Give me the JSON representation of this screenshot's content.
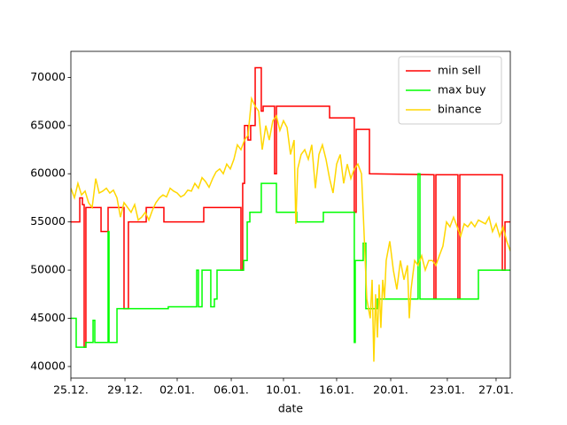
{
  "chart_data": {
    "type": "line",
    "x_label": "date",
    "xlim": [
      0,
      33.07
    ],
    "ylim": [
      38800,
      72700
    ],
    "xticks": [
      {
        "value": 0,
        "label": "25.12."
      },
      {
        "value": 4.07,
        "label": "29.12."
      },
      {
        "value": 8,
        "label": "02.01."
      },
      {
        "value": 12.07,
        "label": "06.01."
      },
      {
        "value": 16,
        "label": "10.01."
      },
      {
        "value": 20,
        "label": "16.01."
      },
      {
        "value": 24.07,
        "label": "20.01."
      },
      {
        "value": 28.33,
        "label": "23.01."
      },
      {
        "value": 32,
        "label": "27.01."
      }
    ],
    "yticks": [
      40000,
      45000,
      50000,
      55000,
      60000,
      65000,
      70000
    ],
    "legend": "upper right",
    "series": [
      {
        "name": "min sell",
        "color": "#ff0000",
        "x": [
          0,
          0.67,
          0.67,
          0.87,
          0.87,
          1,
          1,
          1.13,
          1.13,
          2.27,
          2.27,
          2.8,
          2.8,
          4,
          4,
          4.33,
          4.33,
          5.67,
          5.67,
          7,
          7,
          10,
          10,
          12.8,
          12.8,
          12.93,
          12.93,
          13.07,
          13.07,
          13.33,
          13.33,
          13.53,
          13.53,
          13.87,
          13.87,
          14.33,
          14.33,
          14.47,
          14.47,
          15.33,
          15.33,
          15.47,
          15.47,
          19.47,
          19.47,
          21.33,
          21.33,
          21.47,
          21.47,
          22.47,
          22.47,
          27.33,
          27.33,
          27.47,
          27.47,
          29.13,
          29.13,
          29.27,
          29.27,
          32.47,
          32.47,
          32.67,
          32.67,
          33.07
        ],
        "values": [
          55000,
          55000,
          57500,
          57500,
          56800,
          56800,
          42000,
          42000,
          56500,
          56500,
          54000,
          54000,
          56500,
          56500,
          46000,
          46000,
          55000,
          55000,
          56500,
          56500,
          55000,
          55000,
          56500,
          56500,
          50000,
          50000,
          59000,
          59000,
          65000,
          65000,
          63500,
          63500,
          65000,
          65000,
          71000,
          71000,
          66500,
          66500,
          67000,
          67000,
          60000,
          60000,
          67000,
          67000,
          65800,
          65800,
          56000,
          56000,
          64600,
          64600,
          60000,
          59900,
          47000,
          47000,
          59900,
          59900,
          47000,
          47000,
          59900,
          59900,
          50000,
          50000,
          55000,
          55000
        ]
      },
      {
        "name": "max buy",
        "color": "#00ff00",
        "x": [
          0,
          0.4,
          0.4,
          1.13,
          1.13,
          1.67,
          1.67,
          1.8,
          1.8,
          2.8,
          2.8,
          2.87,
          2.87,
          3.47,
          3.47,
          7.33,
          7.33,
          9.47,
          9.47,
          9.6,
          9.6,
          9.87,
          9.87,
          10.53,
          10.53,
          10.8,
          10.8,
          11,
          11,
          13,
          13,
          13.27,
          13.27,
          13.47,
          13.47,
          14.33,
          14.33,
          15.47,
          15.47,
          17,
          17,
          19,
          19,
          21.33,
          21.33,
          21.4,
          21.4,
          22,
          22,
          22.2,
          22.2,
          23.07,
          23.07,
          26.13,
          26.13,
          26.27,
          26.27,
          30.67,
          30.67,
          33.07
        ],
        "values": [
          45000,
          45000,
          42000,
          42000,
          42500,
          42500,
          44800,
          44800,
          42500,
          42500,
          54000,
          54000,
          42500,
          42500,
          46000,
          46000,
          46200,
          46200,
          50000,
          50000,
          46200,
          46200,
          50000,
          50000,
          46200,
          46200,
          47000,
          47000,
          50000,
          50000,
          51000,
          51000,
          55000,
          55000,
          56000,
          56000,
          59000,
          59000,
          56000,
          56000,
          55000,
          55000,
          56000,
          56000,
          42500,
          42500,
          51000,
          51000,
          52800,
          52800,
          46000,
          46000,
          47000,
          47000,
          60000,
          60000,
          47000,
          47000,
          50000,
          50000
        ]
      },
      {
        "name": "binance",
        "color": "#ffd700",
        "x": [
          0,
          0.27,
          0.53,
          0.8,
          1.07,
          1.33,
          1.6,
          1.87,
          2.13,
          2.4,
          2.67,
          2.93,
          3.2,
          3.47,
          3.73,
          4,
          4.27,
          4.53,
          4.8,
          5.07,
          5.33,
          5.6,
          5.87,
          6.13,
          6.4,
          6.67,
          6.93,
          7.2,
          7.47,
          7.73,
          8,
          8.27,
          8.53,
          8.8,
          9.07,
          9.33,
          9.6,
          9.87,
          10.13,
          10.4,
          10.67,
          10.93,
          11.2,
          11.47,
          11.73,
          12,
          12.27,
          12.53,
          12.8,
          13.07,
          13.33,
          13.6,
          13.87,
          14.13,
          14.4,
          14.67,
          14.93,
          15.2,
          15.47,
          15.73,
          16,
          16.27,
          16.53,
          16.8,
          16.93,
          17.07,
          17.33,
          17.6,
          17.87,
          18.13,
          18.4,
          18.67,
          18.93,
          19.2,
          19.47,
          19.73,
          20,
          20.27,
          20.53,
          20.8,
          21.07,
          21.33,
          21.6,
          21.87,
          22,
          22.27,
          22.53,
          22.67,
          22.8,
          22.93,
          23.07,
          23.2,
          23.33,
          23.47,
          23.6,
          23.73,
          24,
          24.27,
          24.53,
          24.8,
          25.07,
          25.33,
          25.47,
          25.6,
          25.87,
          26.13,
          26.4,
          26.67,
          26.93,
          27.2,
          27.47,
          27.73,
          28,
          28.27,
          28.53,
          28.8,
          29.07,
          29.33,
          29.6,
          29.87,
          30.13,
          30.4,
          30.67,
          30.93,
          31.2,
          31.47,
          31.73,
          32,
          32.27,
          32.53,
          32.8,
          33.07
        ],
        "values": [
          58500,
          57500,
          59000,
          57800,
          58200,
          57000,
          56500,
          59500,
          58000,
          58200,
          58500,
          58000,
          58300,
          57500,
          55500,
          57000,
          56500,
          56000,
          56800,
          55200,
          55500,
          56000,
          55200,
          56200,
          57000,
          57500,
          57800,
          57600,
          58500,
          58200,
          58000,
          57600,
          57800,
          58300,
          58200,
          59000,
          58500,
          59600,
          59200,
          58600,
          59500,
          60200,
          60500,
          60000,
          61000,
          60500,
          61500,
          63000,
          62500,
          63500,
          64000,
          67800,
          67000,
          66500,
          62500,
          65000,
          63500,
          65500,
          66000,
          64500,
          65500,
          64800,
          62000,
          63500,
          54800,
          60500,
          62000,
          62500,
          61500,
          63000,
          58500,
          62000,
          63000,
          61500,
          59500,
          58000,
          61000,
          62000,
          59000,
          61000,
          59500,
          60500,
          61000,
          60000,
          56000,
          47000,
          45000,
          49000,
          40500,
          47500,
          43000,
          48500,
          44000,
          49000,
          47000,
          51000,
          53000,
          50000,
          48000,
          51000,
          49000,
          50500,
          45000,
          48000,
          51000,
          50500,
          51500,
          50000,
          51000,
          51000,
          50500,
          51500,
          52500,
          55000,
          54500,
          55500,
          54500,
          53500,
          54800,
          54500,
          55000,
          54500,
          55200,
          55000,
          54800,
          55500,
          54000,
          54800,
          53500,
          54500,
          53000,
          52000
        ]
      }
    ]
  }
}
